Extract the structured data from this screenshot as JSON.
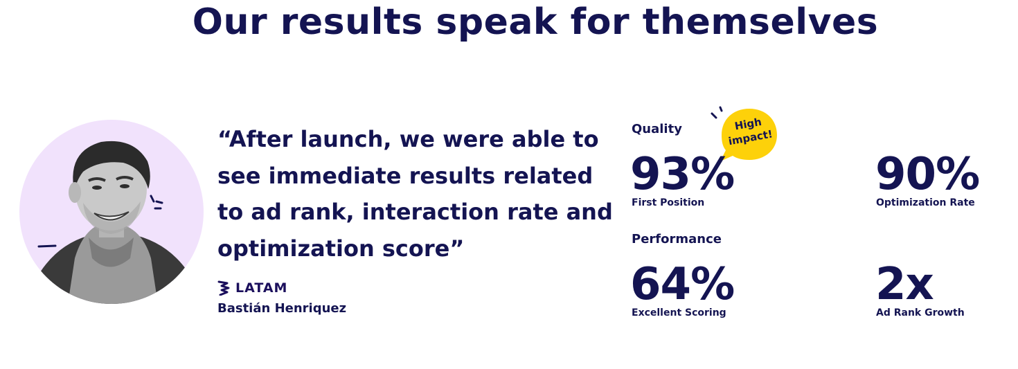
{
  "headline": "Our results speak for themselves",
  "testimonial": {
    "quote": "“After launch, we were able to see immediate results related to ad rank, interaction rate and optimization score”",
    "company_logo_text": "LATAM",
    "author": "Bastián Henriquez"
  },
  "stats": {
    "quality": {
      "label": "Quality",
      "items": [
        {
          "value": "93%",
          "caption": "First Position"
        },
        {
          "value": "90%",
          "caption": "Optimization Rate"
        }
      ],
      "badge": {
        "line1": "High",
        "line2": "impact!"
      }
    },
    "performance": {
      "label": "Performance",
      "items": [
        {
          "value": "64%",
          "caption": "Excellent Scoring"
        },
        {
          "value": "2x",
          "caption": "Ad Rank Growth"
        }
      ]
    }
  },
  "colors": {
    "text": "#141452",
    "avatar_bg": "#f1e2fc",
    "badge": "#fdd10a"
  },
  "icons": {
    "avatar": "person-photo",
    "logo": "latam-logo-icon",
    "badge": "speech-bubble-icon"
  }
}
